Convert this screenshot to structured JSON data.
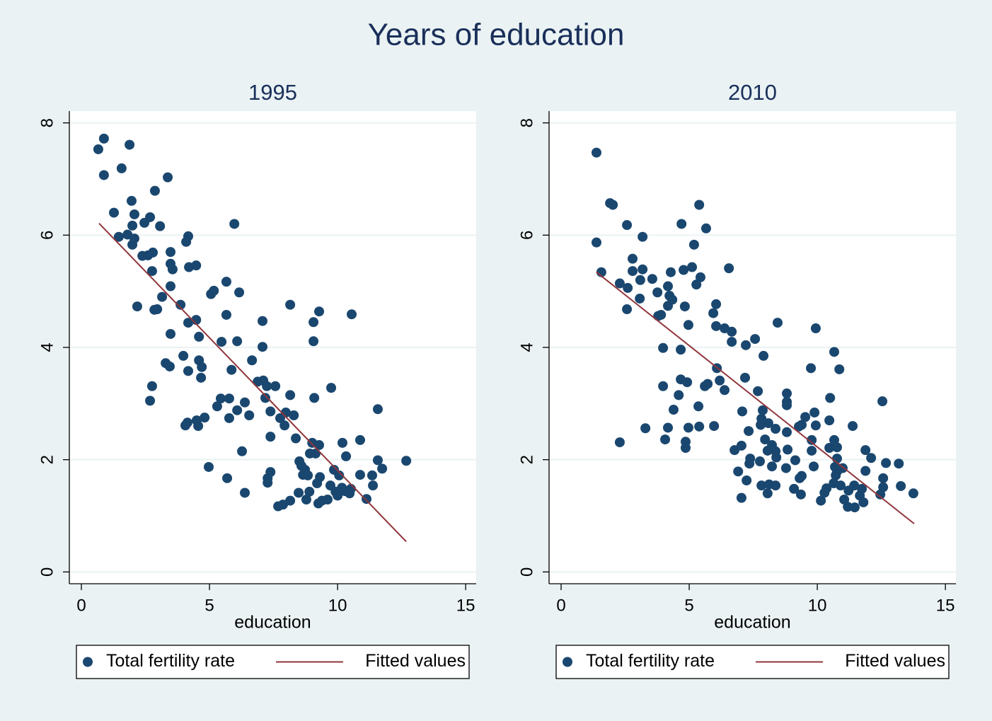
{
  "title": "Years of education",
  "chart_data": [
    {
      "type": "scatter",
      "title": "1995",
      "xlabel": "education",
      "xlim": [
        -0.47,
        15.41
      ],
      "ylim": [
        -0.21,
        8.21
      ],
      "xticks": [
        0,
        5,
        10,
        15
      ],
      "yticks": [
        0,
        2,
        4,
        6,
        8
      ],
      "grid": true,
      "legend": "bottom",
      "series": [
        {
          "name": "Total fertility rate",
          "type": "scatter",
          "color": "#1a476f",
          "x": [
            0.66,
            0.88,
            0.88,
            1.88,
            1.57,
            3.37,
            1.27,
            1.96,
            2.87,
            2.07,
            2.68,
            2.46,
            1.99,
            3.07,
            1.46,
            1.8,
            2.07,
            1.99,
            5.97,
            4.17,
            4.09,
            2.38,
            2.6,
            2.79,
            3.48,
            3.48,
            3.56,
            4.2,
            4.48,
            2.76,
            3.48,
            5.66,
            5.17,
            5.06,
            6.16,
            3.15,
            2.18,
            2.85,
            2.96,
            3.87,
            5.66,
            8.15,
            9.28,
            10.55,
            4.48,
            4.17,
            7.07,
            9.06,
            3.48,
            4.59,
            5.47,
            6.08,
            9.06,
            7.07,
            3.98,
            4.59,
            6.66,
            3.29,
            3.45,
            4.7,
            4.17,
            5.86,
            4.67,
            6.88,
            7.1,
            7.24,
            7.57,
            9.75,
            2.76,
            7.18,
            8.15,
            9.09,
            5.44,
            5.77,
            6.38,
            2.68,
            5.3,
            6.08,
            7.38,
            11.57,
            7.98,
            8.29,
            6.55,
            4.81,
            5.77,
            7.76,
            4.5,
            4.14,
            4.06,
            4.56,
            7.93,
            7.38,
            8.37,
            9.01,
            9.28,
            10.19,
            10.88,
            6.27,
            8.92,
            9.14,
            10.33,
            12.68,
            11.57,
            11.74,
            8.51,
            8.59,
            8.73,
            9.86,
            4.97,
            7.38,
            8.65,
            8.84,
            9.31,
            10.06,
            10.88,
            11.35,
            7.27,
            5.69,
            7.27,
            9.2,
            9.72,
            10.17,
            10.52,
            11.38,
            6.38,
            8.48,
            8.9,
            9.92,
            10.28,
            10.47,
            10.0,
            8.78,
            9.39,
            9.61,
            8.15,
            9.25,
            11.13,
            7.68,
            7.87
          ],
          "values": [
            7.53,
            7.72,
            7.07,
            7.61,
            7.19,
            7.03,
            6.4,
            6.61,
            6.79,
            6.37,
            6.32,
            6.22,
            6.17,
            6.16,
            5.97,
            6.01,
            5.94,
            5.83,
            6.2,
            5.98,
            5.88,
            5.63,
            5.64,
            5.69,
            5.7,
            5.49,
            5.39,
            5.43,
            5.46,
            5.36,
            5.09,
            5.17,
            5.01,
            4.95,
            4.98,
            4.9,
            4.73,
            4.67,
            4.68,
            4.76,
            4.58,
            4.76,
            4.64,
            4.59,
            4.49,
            4.44,
            4.47,
            4.45,
            4.24,
            4.19,
            4.1,
            4.11,
            4.11,
            4.01,
            3.85,
            3.77,
            3.77,
            3.72,
            3.66,
            3.65,
            3.58,
            3.6,
            3.46,
            3.39,
            3.41,
            3.31,
            3.31,
            3.28,
            3.31,
            3.1,
            3.15,
            3.1,
            3.09,
            3.09,
            3.02,
            3.05,
            2.95,
            2.88,
            2.86,
            2.9,
            2.84,
            2.79,
            2.79,
            2.75,
            2.74,
            2.74,
            2.7,
            2.66,
            2.61,
            2.6,
            2.61,
            2.41,
            2.38,
            2.3,
            2.26,
            2.3,
            2.35,
            2.15,
            2.11,
            2.11,
            2.06,
            1.98,
            1.99,
            1.84,
            1.97,
            1.89,
            1.82,
            1.82,
            1.87,
            1.78,
            1.73,
            1.72,
            1.69,
            1.72,
            1.73,
            1.72,
            1.67,
            1.67,
            1.59,
            1.58,
            1.54,
            1.5,
            1.48,
            1.54,
            1.41,
            1.41,
            1.43,
            1.43,
            1.44,
            1.4,
            1.36,
            1.29,
            1.27,
            1.29,
            1.27,
            1.22,
            1.3,
            1.17,
            1.2
          ]
        },
        {
          "name": "Fitted values",
          "type": "line",
          "color": "#90353b",
          "x": [
            0.69,
            12.68
          ],
          "values": [
            6.21,
            0.54
          ]
        }
      ]
    },
    {
      "type": "scatter",
      "title": "2010",
      "xlabel": "education",
      "xlim": [
        -0.47,
        15.41
      ],
      "ylim": [
        -0.21,
        8.21
      ],
      "xticks": [
        0,
        5,
        10,
        15
      ],
      "yticks": [
        0,
        2,
        4,
        6,
        8
      ],
      "grid": true,
      "legend": "bottom",
      "series": [
        {
          "name": "Total fertility rate",
          "type": "scatter",
          "color": "#1a476f",
          "x": [
            1.38,
            1.38,
            1.57,
            1.91,
            2.02,
            2.57,
            3.18,
            2.29,
            2.6,
            2.79,
            2.79,
            3.18,
            3.09,
            3.56,
            3.07,
            2.57,
            3.76,
            4.17,
            4.28,
            4.7,
            4.78,
            5.11,
            5.19,
            5.39,
            5.66,
            5.28,
            5.44,
            4.23,
            4.34,
            4.17,
            4.83,
            3.79,
            3.9,
            4.97,
            6.05,
            5.94,
            6.05,
            6.38,
            6.66,
            6.55,
            6.66,
            7.21,
            7.57,
            8.45,
            9.94,
            7.9,
            10.66,
            3.98,
            4.67,
            6.08,
            9.75,
            10.86,
            6.19,
            4.67,
            4.92,
            3.98,
            5.61,
            5.72,
            7.18,
            6.38,
            7.68,
            8.81,
            4.59,
            8.81,
            8.81,
            10.5,
            12.54,
            5.36,
            4.39,
            7.07,
            7.87,
            9.89,
            9.53,
            7.82,
            8.09,
            10.47,
            7.79,
            9.39,
            9.94,
            9.28,
            3.29,
            4.17,
            4.97,
            5.39,
            5.97,
            8.37,
            11.38,
            7.32,
            8.81,
            2.29,
            4.06,
            4.86,
            4.86,
            7.96,
            9.78,
            10.66,
            7.04,
            6.77,
            8.23,
            8.06,
            8.37,
            8.84,
            9.78,
            10.47,
            10.77,
            11.88,
            7.38,
            7.76,
            8.4,
            9.14,
            10.77,
            12.1,
            7.35,
            8.23,
            8.78,
            9.86,
            10.69,
            10.99,
            12.68,
            13.18,
            6.91,
            10.77,
            11.88,
            9.31,
            9.39,
            10.72,
            12.57,
            7.24,
            8.12,
            10.64,
            10.91,
            7.82,
            8.37,
            9.09,
            10.36,
            11.22,
            11.44,
            11.74,
            12.57,
            13.26,
            8.06,
            9.36,
            10.28,
            13.75,
            7.04,
            10.14,
            11.05,
            11.66,
            12.46,
            11.8,
            11.19,
            11.46
          ],
          "values": [
            7.47,
            5.87,
            5.34,
            6.57,
            6.54,
            6.18,
            5.97,
            5.14,
            5.06,
            5.58,
            5.36,
            5.39,
            5.2,
            5.22,
            4.87,
            4.68,
            4.98,
            5.09,
            5.34,
            6.2,
            5.38,
            5.43,
            5.83,
            6.54,
            6.12,
            5.12,
            5.25,
            4.92,
            4.85,
            4.74,
            4.73,
            4.56,
            4.58,
            4.4,
            4.77,
            4.61,
            4.38,
            4.34,
            4.28,
            5.41,
            4.1,
            4.04,
            4.15,
            4.44,
            4.34,
            3.85,
            3.92,
            3.99,
            3.96,
            3.63,
            3.63,
            3.61,
            3.41,
            3.43,
            3.38,
            3.31,
            3.31,
            3.35,
            3.46,
            3.24,
            3.22,
            3.18,
            3.15,
            3.03,
            2.97,
            3.1,
            3.04,
            2.95,
            2.89,
            2.86,
            2.88,
            2.84,
            2.76,
            2.73,
            2.65,
            2.7,
            2.62,
            2.62,
            2.61,
            2.59,
            2.56,
            2.57,
            2.57,
            2.59,
            2.6,
            2.55,
            2.6,
            2.51,
            2.49,
            2.31,
            2.36,
            2.32,
            2.21,
            2.36,
            2.35,
            2.35,
            2.25,
            2.17,
            2.26,
            2.16,
            2.15,
            2.18,
            2.16,
            2.21,
            2.22,
            2.17,
            2.02,
            1.97,
            2.04,
            1.99,
            2.02,
            2.03,
            1.93,
            1.88,
            1.85,
            1.88,
            1.87,
            1.85,
            1.94,
            1.93,
            1.79,
            1.79,
            1.8,
            1.67,
            1.71,
            1.72,
            1.67,
            1.63,
            1.56,
            1.58,
            1.54,
            1.54,
            1.54,
            1.48,
            1.49,
            1.45,
            1.54,
            1.48,
            1.51,
            1.53,
            1.4,
            1.38,
            1.41,
            1.4,
            1.32,
            1.27,
            1.29,
            1.36,
            1.38,
            1.24,
            1.16,
            1.15
          ]
        },
        {
          "name": "Fitted values",
          "type": "line",
          "color": "#90353b",
          "x": [
            1.38,
            13.78
          ],
          "values": [
            5.34,
            0.86
          ]
        }
      ]
    }
  ]
}
